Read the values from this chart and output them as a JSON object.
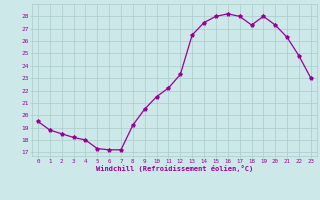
{
  "x": [
    0,
    1,
    2,
    3,
    4,
    5,
    6,
    7,
    8,
    9,
    10,
    11,
    12,
    13,
    14,
    15,
    16,
    17,
    18,
    19,
    20,
    21,
    22,
    23
  ],
  "y": [
    19.5,
    18.8,
    18.5,
    18.2,
    18.0,
    17.3,
    17.2,
    17.2,
    19.2,
    20.5,
    21.5,
    22.2,
    23.3,
    26.5,
    27.5,
    28.0,
    28.2,
    28.0,
    27.3,
    28.0,
    27.3,
    26.3,
    24.8,
    23.0
  ],
  "line_color": "#990099",
  "marker": "*",
  "bg_color": "#cce8e8",
  "grid_color": "#aacccc",
  "xlabel": "Windchill (Refroidissement éolien,°C)",
  "ytick_labels": [
    "17",
    "18",
    "19",
    "20",
    "21",
    "22",
    "23",
    "24",
    "25",
    "26",
    "27",
    "28"
  ],
  "ytick_vals": [
    17,
    18,
    19,
    20,
    21,
    22,
    23,
    24,
    25,
    26,
    27,
    28
  ],
  "xlim": [
    -0.5,
    23.5
  ],
  "ylim": [
    16.7,
    29.0
  ]
}
